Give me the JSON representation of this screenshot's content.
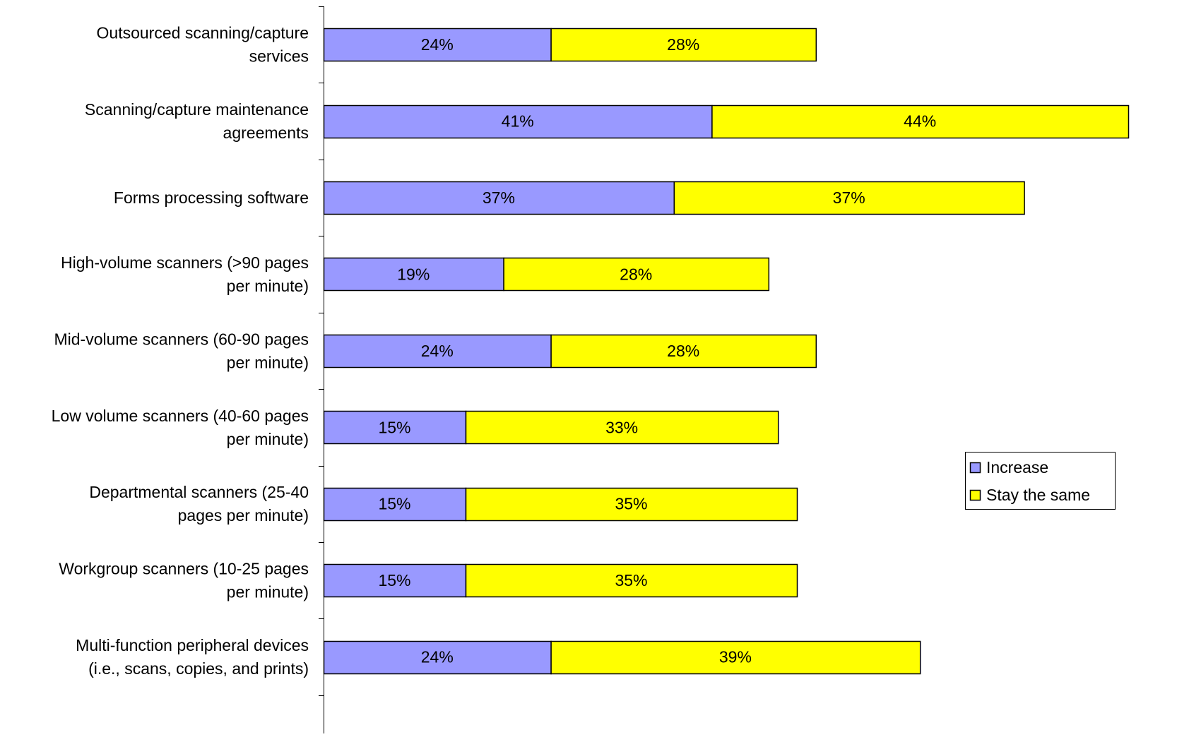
{
  "chart_data": {
    "type": "bar",
    "orientation": "horizontal",
    "stacked": true,
    "categories": [
      [
        "Outsourced scanning/capture",
        "services"
      ],
      [
        "Scanning/capture maintenance",
        "agreements"
      ],
      [
        "Forms processing software"
      ],
      [
        "High-volume scanners (>90 pages",
        "per minute)"
      ],
      [
        "Mid-volume scanners (60-90 pages",
        "per minute)"
      ],
      [
        "Low volume scanners (40-60 pages",
        "per minute)"
      ],
      [
        "Departmental scanners (25-40",
        "pages per minute)"
      ],
      [
        "Workgroup scanners (10-25 pages",
        "per minute)"
      ],
      [
        "Multi-function peripheral devices",
        "(i.e., scans, copies, and prints)"
      ]
    ],
    "series": [
      {
        "name": "Increase",
        "color": "#9999ff",
        "values": [
          24,
          41,
          37,
          19,
          24,
          15,
          15,
          15,
          24
        ],
        "labels": [
          "24%",
          "41%",
          "37%",
          "19%",
          "24%",
          "15%",
          "15%",
          "15%",
          "24%"
        ]
      },
      {
        "name": "Stay the same",
        "color": "#ffff00",
        "values": [
          28,
          44,
          37,
          28,
          28,
          33,
          35,
          35,
          39
        ],
        "labels": [
          "28%",
          "44%",
          "37%",
          "28%",
          "28%",
          "33%",
          "35%",
          "35%",
          "39%"
        ]
      }
    ],
    "xlim": [
      0,
      86
    ],
    "value_unit": "%",
    "grid": false,
    "legend_position": "right",
    "title": "",
    "xlabel": "",
    "ylabel": ""
  }
}
